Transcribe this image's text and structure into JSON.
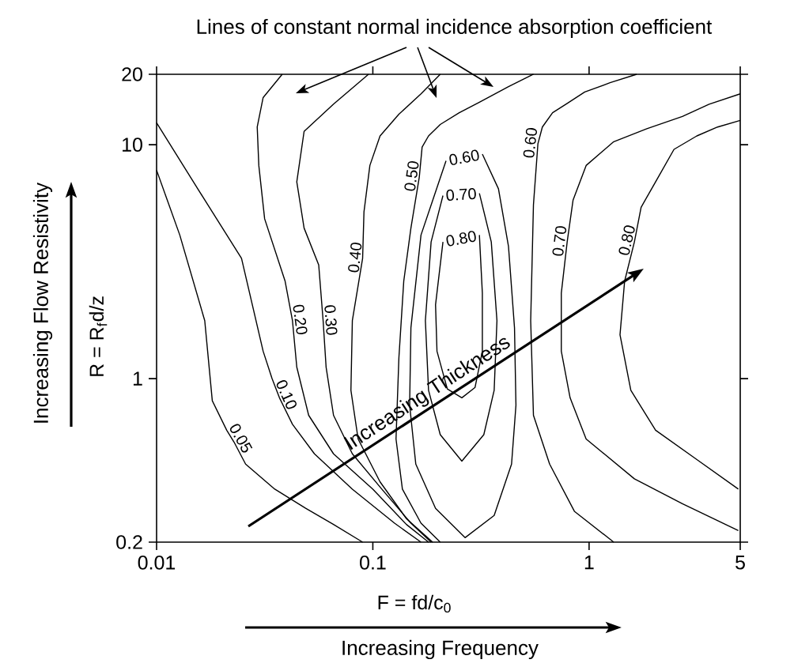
{
  "chart_data": {
    "type": "line",
    "title": "Lines of constant normal incidence absorption coefficient",
    "xlabel": "F = fd/c$_{0}$",
    "ylabel": "R = R$_{f}$d/z",
    "annotations": [
      "Increasing Thickness",
      "Increasing Frequency",
      "Increasing Flow Resistivity"
    ],
    "log": "xy",
    "xlim": [
      0.01,
      5
    ],
    "ylim": [
      0.2,
      20
    ],
    "xticks": [
      0.01,
      0.1,
      1,
      5
    ],
    "yticks": [
      0.2,
      1,
      10,
      20
    ],
    "series": [
      {
        "name": "0.05",
        "color": "#000000",
        "x": [
          0.01,
          0.0128,
          0.0167,
          0.0181,
          0.0211,
          0.0228,
          0.0258,
          0.0352,
          0.0489,
          0.0658,
          0.0897
        ],
        "values": [
          7.78,
          4.11,
          1.77,
          0.804,
          0.602,
          0.536,
          0.431,
          0.337,
          0.279,
          0.238,
          0.2
        ]
      },
      {
        "name": "0.10",
        "color": "#000000",
        "x": [
          0.01,
          0.0155,
          0.0247,
          0.0311,
          0.0342,
          0.037,
          0.0425,
          0.0537,
          0.0804,
          0.126,
          0.167
        ],
        "values": [
          12.4,
          6.48,
          3.27,
          1.31,
          1.0,
          0.828,
          0.638,
          0.477,
          0.337,
          0.241,
          0.2
        ]
      },
      {
        "name": "0.20",
        "color": "#000000",
        "x": [
          0.0381,
          0.0311,
          0.0292,
          0.0297,
          0.0316,
          0.0393,
          0.0425,
          0.0445,
          0.0505,
          0.0658,
          0.1,
          0.143,
          0.181
        ],
        "values": [
          20,
          15.9,
          11.9,
          8.15,
          4.82,
          2.61,
          1.77,
          1.12,
          0.697,
          0.477,
          0.337,
          0.238,
          0.2
        ]
      },
      {
        "name": "0.30",
        "color": "#000000",
        "x": [
          0.0955,
          0.0658,
          0.0481,
          0.0445,
          0.0481,
          0.0562,
          0.0589,
          0.0608,
          0.0658,
          0.0804,
          0.11,
          0.15,
          0.186
        ],
        "values": [
          20,
          14.9,
          11.4,
          6.94,
          4.4,
          3.06,
          1.77,
          1.12,
          0.697,
          0.477,
          0.337,
          0.241,
          0.2
        ]
      },
      {
        "name": "0.40",
        "color": "#000000",
        "x": [
          0.205,
          0.167,
          0.132,
          0.108,
          0.0969,
          0.091,
          0.0897,
          0.0804,
          0.0792,
          0.0855,
          0.108,
          0.143,
          0.189
        ],
        "values": [
          20,
          16.5,
          13.5,
          10.9,
          8.15,
          5.16,
          3.27,
          1.77,
          0.891,
          0.552,
          0.362,
          0.252,
          0.2
        ]
      },
      {
        "name": "0.50",
        "color": "#000000",
        "x": [
          0.553,
          0.424,
          0.311,
          0.251,
          0.205,
          0.181,
          0.169,
          0.164,
          0.15,
          0.139,
          0.132,
          0.128,
          0.137,
          0.167,
          0.205
        ],
        "values": [
          20,
          17.7,
          15.2,
          13.7,
          12.2,
          10.9,
          9.77,
          7.27,
          4.4,
          2.61,
          1.23,
          0.552,
          0.337,
          0.241,
          0.2
        ]
      },
      {
        "name": "0.60",
        "color": "#000000",
        "x": [
          0.321,
          0.381,
          0.424,
          0.452,
          0.459,
          0.438,
          0.364,
          0.267,
          0.195,
          0.158,
          0.148,
          0.15,
          0.167,
          0.218
        ],
        "values": [
          9.12,
          6.48,
          3.67,
          1.65,
          0.77,
          0.431,
          0.26,
          0.209,
          0.279,
          0.431,
          0.77,
          1.65,
          4.11,
          8.53
        ]
      },
      {
        "name": "0.70",
        "color": "#000000",
        "x": [
          0.311,
          0.353,
          0.375,
          0.364,
          0.326,
          0.258,
          0.205,
          0.181,
          0.175,
          0.186,
          0.211
        ],
        "values": [
          6.2,
          3.84,
          1.77,
          0.891,
          0.576,
          0.444,
          0.576,
          0.891,
          1.77,
          3.84,
          6.06
        ]
      },
      {
        "name": "0.80",
        "color": "#000000",
        "x": [
          0.311,
          0.321,
          0.321,
          0.297,
          0.258,
          0.221,
          0.198,
          0.195,
          0.211
        ],
        "values": [
          4.11,
          2.32,
          1.31,
          0.917,
          0.828,
          0.904,
          1.31,
          2.07,
          3.84
        ]
      },
      {
        "name": "0.60",
        "color": "#000000",
        "x": [
          1.66,
          1.25,
          0.955,
          0.792,
          0.678,
          0.608,
          0.58,
          0.553,
          0.537,
          0.553,
          0.657,
          0.855,
          1.3
        ],
        "values": [
          20,
          18.4,
          16.8,
          15.0,
          13.7,
          11.9,
          10.1,
          5.53,
          1.77,
          0.697,
          0.431,
          0.271,
          0.2
        ]
      },
      {
        "name": "0.70",
        "color": "#000000",
        "x": [
          5,
          3.59,
          2.7,
          1.85,
          1.3,
          0.969,
          0.843,
          0.792,
          0.744,
          0.744,
          0.817,
          0.969,
          1.62,
          2.7,
          4.9
        ],
        "values": [
          16.5,
          14.9,
          13.2,
          11.7,
          10.3,
          8.15,
          5.79,
          3.84,
          2.32,
          1.31,
          0.828,
          0.552,
          0.373,
          0.292,
          0.224
        ]
      },
      {
        "name": "0.80",
        "color": "#000000",
        "x": [
          5,
          3.93,
          3.15,
          2.47,
          2.03,
          1.74,
          1.62,
          1.46,
          1.39,
          1.56,
          2.03,
          3.15,
          4.9
        ],
        "values": [
          12.7,
          11.9,
          10.9,
          9.55,
          6.94,
          5.4,
          3.84,
          2.61,
          1.54,
          0.891,
          0.602,
          0.451,
          0.337
        ]
      }
    ]
  }
}
